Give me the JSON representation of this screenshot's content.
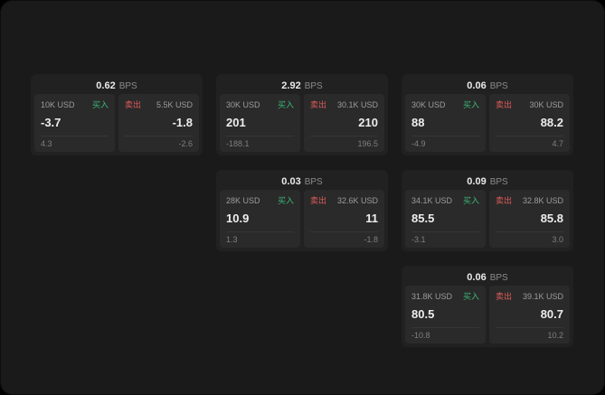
{
  "labels": {
    "buy": "买入",
    "sell": "卖出",
    "bps_unit": "BPS"
  },
  "colors": {
    "background": "#1a1a1a",
    "card_bg": "#212121",
    "panel_bg": "#2a2a2a",
    "buy_green": "#3cb878",
    "sell_red": "#e05b5b"
  },
  "cards": [
    {
      "bps": "0.62",
      "buy": {
        "amount": "10K USD",
        "price": "-3.7",
        "delta": "4.3"
      },
      "sell": {
        "amount": "5.5K USD",
        "price": "-1.8",
        "delta": "-2.6"
      }
    },
    {
      "bps": "2.92",
      "buy": {
        "amount": "30K USD",
        "price": "201",
        "delta": "-188.1"
      },
      "sell": {
        "amount": "30.1K USD",
        "price": "210",
        "delta": "196.5"
      }
    },
    {
      "bps": "0.06",
      "buy": {
        "amount": "30K USD",
        "price": "88",
        "delta": "-4.9"
      },
      "sell": {
        "amount": "30K USD",
        "price": "88.2",
        "delta": "4.7"
      }
    },
    {
      "bps": "0.03",
      "buy": {
        "amount": "28K USD",
        "price": "10.9",
        "delta": "1.3"
      },
      "sell": {
        "amount": "32.6K USD",
        "price": "11",
        "delta": "-1.8"
      }
    },
    {
      "bps": "0.09",
      "buy": {
        "amount": "34.1K USD",
        "price": "85.5",
        "delta": "-3.1"
      },
      "sell": {
        "amount": "32.8K USD",
        "price": "85.8",
        "delta": "3.0"
      }
    },
    {
      "bps": "0.06",
      "buy": {
        "amount": "31.8K USD",
        "price": "80.5",
        "delta": "-10.8"
      },
      "sell": {
        "amount": "39.1K USD",
        "price": "80.7",
        "delta": "10.2"
      }
    }
  ]
}
